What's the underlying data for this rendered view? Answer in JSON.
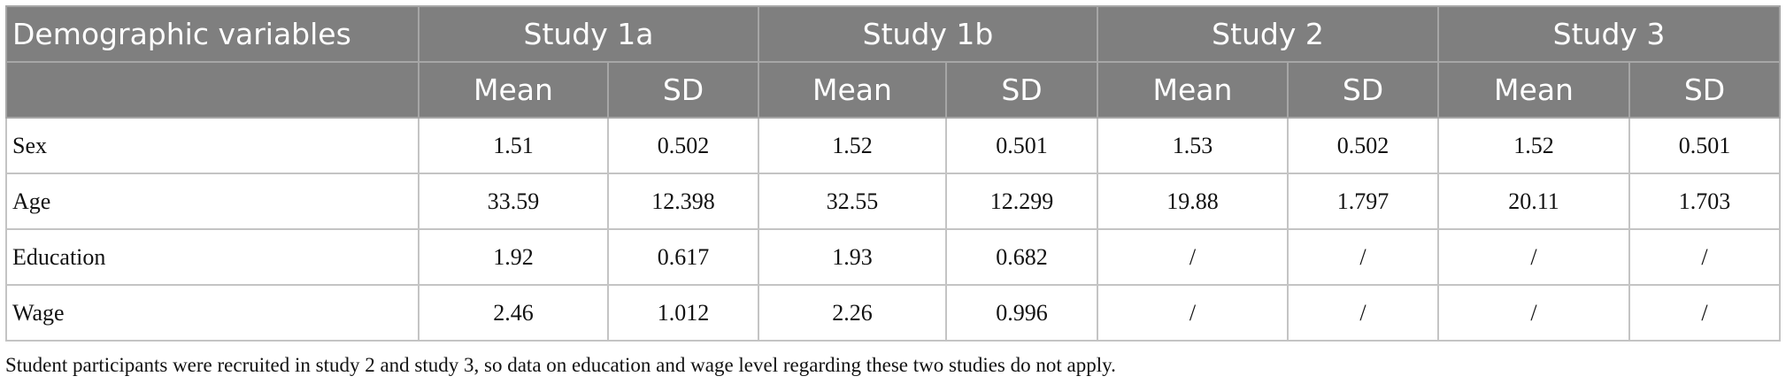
{
  "table": {
    "corner": "Demographic variables",
    "studies": [
      "Study 1a",
      "Study 1b",
      "Study 2",
      "Study 3"
    ],
    "subheaders": [
      "Mean",
      "SD",
      "Mean",
      "SD",
      "Mean",
      "SD",
      "Mean",
      "SD"
    ],
    "rows": [
      {
        "label": "Sex",
        "values": [
          1.51,
          0.502,
          1.52,
          0.501,
          1.53,
          0.502,
          1.52,
          0.501
        ]
      },
      {
        "label": "Age",
        "values": [
          33.59,
          12.398,
          32.55,
          12.299,
          19.88,
          1.797,
          20.11,
          1.703
        ]
      },
      {
        "label": "Education",
        "values": [
          1.92,
          0.617,
          1.93,
          0.682,
          "/",
          "/",
          "/",
          "/"
        ]
      },
      {
        "label": "Wage",
        "values": [
          2.46,
          1.012,
          2.26,
          0.996,
          "/",
          "/",
          "/",
          "/"
        ]
      }
    ]
  },
  "footnote": "Student participants were recruited in study 2 and study 3, so data on education and wage level regarding these two studies do not apply."
}
